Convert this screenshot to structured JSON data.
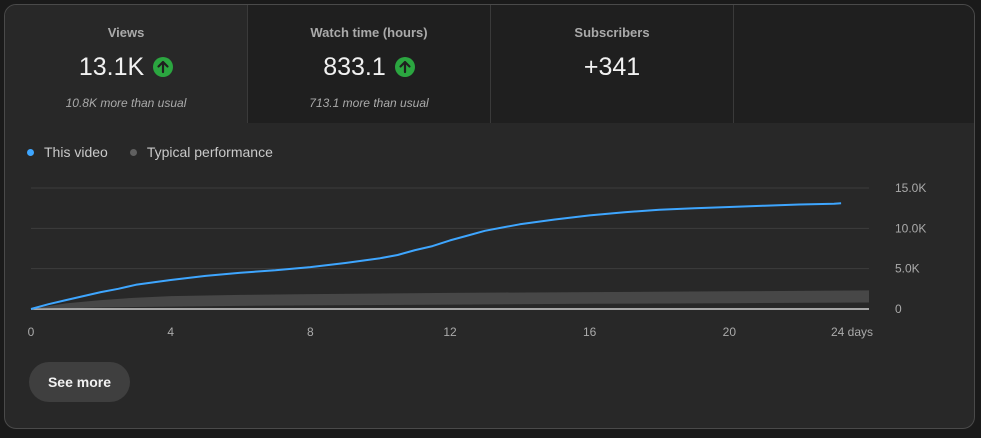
{
  "metrics": [
    {
      "label": "Views",
      "value": "13.1K",
      "trend": "up",
      "note": "10.8K more than usual"
    },
    {
      "label": "Watch time (hours)",
      "value": "833.1",
      "trend": "up",
      "note": "713.1 more than usual"
    },
    {
      "label": "Subscribers",
      "value": "+341",
      "trend": "",
      "note": ""
    }
  ],
  "legend": {
    "this_video": "This video",
    "typical": "Typical performance"
  },
  "see_more_label": "See more",
  "colors": {
    "this_video": "#3ea6ff",
    "typical": "#606060",
    "trend_up": "#2ba640"
  },
  "chart_data": {
    "type": "line",
    "title": "",
    "xlabel": "",
    "ylabel": "",
    "x_unit": "days",
    "xlim": [
      0,
      24
    ],
    "ylim": [
      0,
      15000
    ],
    "x_ticks": [
      "0",
      "4",
      "8",
      "12",
      "16",
      "20",
      "24 days"
    ],
    "y_ticks": [
      "15.0K",
      "10.0K",
      "5.0K",
      "0"
    ],
    "series": [
      {
        "name": "This video",
        "x": [
          0,
          0.5,
          1,
          2,
          2.5,
          3,
          3.5,
          4,
          5,
          6,
          7,
          8,
          9,
          10,
          10.5,
          11,
          11.5,
          12,
          12.5,
          13,
          13.5,
          14,
          14.5,
          15,
          16,
          17,
          18,
          19,
          20,
          21,
          22,
          23,
          23.2
        ],
        "y": [
          0,
          600,
          1100,
          2100,
          2500,
          3000,
          3300,
          3600,
          4100,
          4500,
          4800,
          5200,
          5700,
          6300,
          6700,
          7300,
          7800,
          8500,
          9100,
          9700,
          10100,
          10500,
          10800,
          11100,
          11600,
          12000,
          12300,
          12500,
          12650,
          12800,
          12950,
          13050,
          13100
        ]
      },
      {
        "name": "Typical performance",
        "x": [
          0,
          1,
          2,
          3,
          4,
          6,
          8,
          12,
          16,
          20,
          24
        ],
        "y_low": [
          0,
          100,
          180,
          250,
          300,
          380,
          450,
          550,
          650,
          720,
          800
        ],
        "y_high": [
          0,
          700,
          1100,
          1400,
          1600,
          1750,
          1850,
          2000,
          2100,
          2200,
          2300
        ]
      }
    ]
  }
}
